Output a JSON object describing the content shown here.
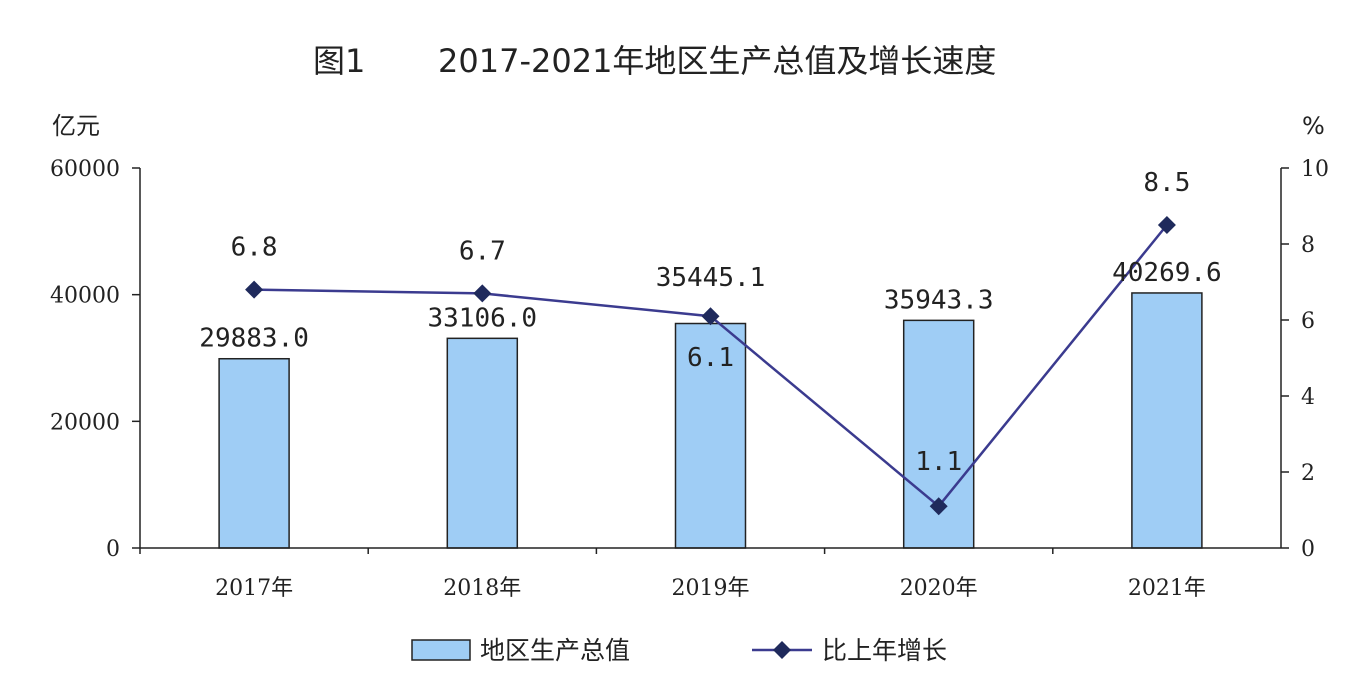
{
  "chart_data": {
    "type": "bar+line",
    "title_prefix": "图1",
    "title": "2017-2021年地区生产总值及增长速度",
    "categories": [
      "2017年",
      "2018年",
      "2019年",
      "2020年",
      "2021年"
    ],
    "bar_series": {
      "name": "地区生产总值",
      "values": [
        29883.0,
        33106.0,
        35445.1,
        35943.3,
        40269.6
      ],
      "labels": [
        "29883.0",
        "33106.0",
        "35445.1",
        "35943.3",
        "40269.6"
      ],
      "color": "#9fcdf5"
    },
    "line_series": {
      "name": "比上年增长",
      "values": [
        6.8,
        6.7,
        6.1,
        1.1,
        8.5
      ],
      "labels": [
        "6.8",
        "6.7",
        "6.1",
        "1.1",
        "8.5"
      ],
      "color": "#3b3b8f"
    },
    "y_left": {
      "unit": "亿元",
      "ylim": [
        0,
        60000
      ],
      "ticks": [
        "0",
        "20000",
        "40000",
        "60000"
      ]
    },
    "y_right": {
      "unit": "%",
      "ylim": [
        0,
        10
      ],
      "ticks": [
        "0",
        "2",
        "4",
        "6",
        "8",
        "10"
      ]
    },
    "legend_position": "bottom"
  }
}
